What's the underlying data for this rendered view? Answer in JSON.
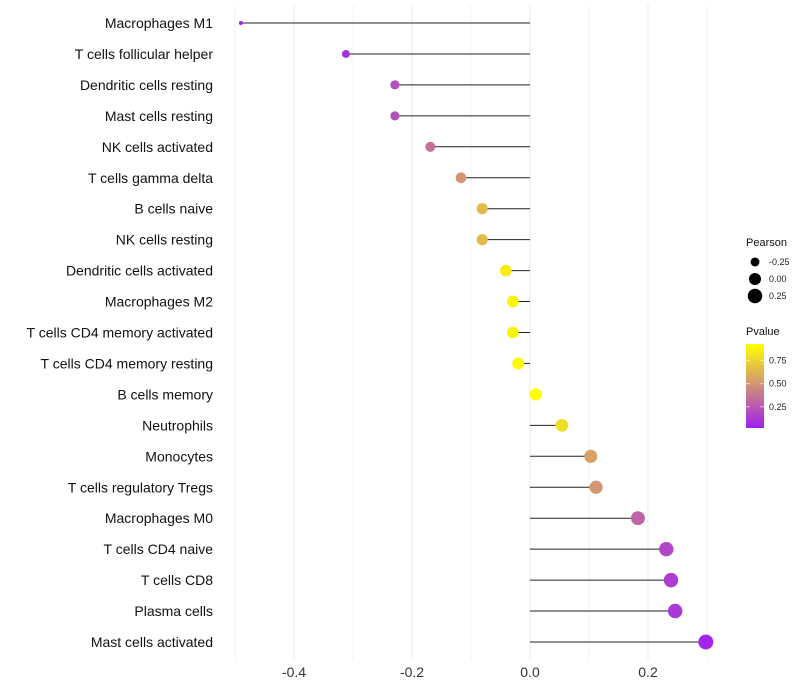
{
  "chart_data": {
    "type": "lollipop",
    "title": "",
    "xlabel": "",
    "ylabel": "",
    "xlim": [
      -0.52,
      0.33
    ],
    "x_ticks": [
      -0.4,
      -0.2,
      0.0,
      0.2
    ],
    "x_tick_labels": [
      "-0.4",
      "-0.2",
      "0.0",
      "0.2"
    ],
    "grid": true,
    "categories": [
      "Macrophages M1",
      "T cells follicular helper",
      "Dendritic cells resting",
      "Mast cells resting",
      "NK cells activated",
      "T cells gamma delta",
      "B cells naive",
      "NK cells resting",
      "Dendritic cells activated",
      "Macrophages M2",
      "T cells CD4 memory activated",
      "T cells CD4 memory resting",
      "B cells memory",
      "Neutrophils",
      "Monocytes",
      "T cells regulatory  Tregs ",
      "Macrophages M0",
      "T cells CD4 naive",
      "T cells CD8",
      "Plasma cells",
      "Mast cells activated"
    ],
    "pearson": [
      -0.49,
      -0.312,
      -0.229,
      -0.229,
      -0.169,
      -0.117,
      -0.081,
      -0.081,
      -0.041,
      -0.029,
      -0.029,
      -0.02,
      0.01,
      0.054,
      0.103,
      0.112,
      0.183,
      0.231,
      0.239,
      0.246,
      0.298
    ],
    "pvalue": [
      0.02,
      0.08,
      0.22,
      0.22,
      0.35,
      0.5,
      0.65,
      0.65,
      0.85,
      0.88,
      0.88,
      0.9,
      0.93,
      0.8,
      0.55,
      0.5,
      0.3,
      0.18,
      0.14,
      0.12,
      0.04
    ],
    "legend": {
      "placement": "right",
      "size_title": "Pearson",
      "size_breaks": [
        -0.25,
        0.0,
        0.25
      ],
      "size_labels": [
        "-0.25",
        "0.00",
        "0.25"
      ],
      "color_title": "Pvalue",
      "color_breaks": [
        0.25,
        0.5,
        0.75
      ],
      "color_labels": [
        "0.25",
        "0.50",
        "0.75"
      ],
      "color_range": [
        0.02,
        0.93
      ],
      "color_low": "#A020F0",
      "color_high": "#FFFF00"
    }
  }
}
